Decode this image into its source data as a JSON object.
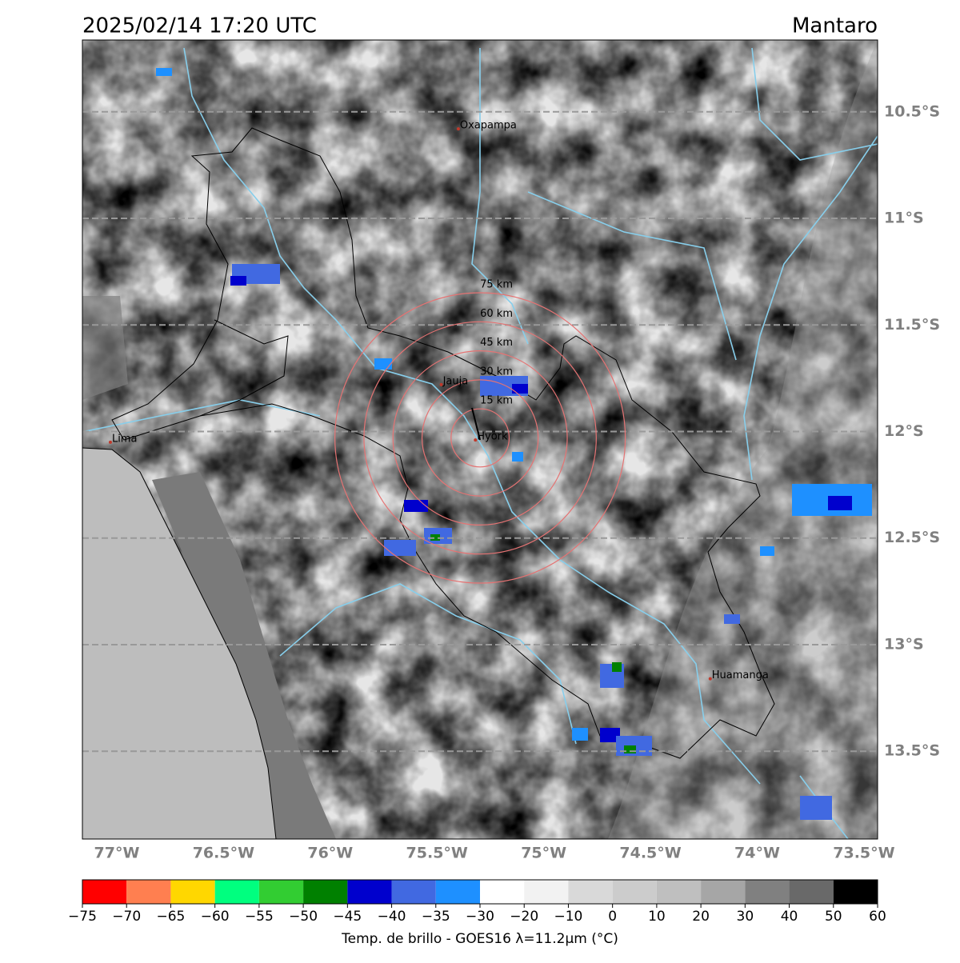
{
  "map": {
    "title": "2025/02/14 17:20 UTC",
    "region": "Mantaro",
    "lonlim": [
      -77.161,
      -73.436
    ],
    "latlim": [
      -10.163,
      -13.912
    ],
    "lat_ticks": [
      {
        "value": -10.5,
        "label": "10.5°S"
      },
      {
        "value": -11,
        "label": "11°S"
      },
      {
        "value": -11.5,
        "label": "11.5°S"
      },
      {
        "value": -12,
        "label": "12°S"
      },
      {
        "value": -12.5,
        "label": "12.5°S"
      },
      {
        "value": -13,
        "label": "13°S"
      },
      {
        "value": -13.5,
        "label": "13.5°S"
      }
    ],
    "lon_ticks": [
      {
        "value": -77,
        "label": "77°W"
      },
      {
        "value": -76.5,
        "label": "76.5°W"
      },
      {
        "value": -76,
        "label": "76°W"
      },
      {
        "value": -75.5,
        "label": "75.5°W"
      },
      {
        "value": -75,
        "label": "75°W"
      },
      {
        "value": -74.5,
        "label": "74.5°W"
      },
      {
        "value": -74,
        "label": "74°W"
      },
      {
        "value": -73.5,
        "label": "73.5°W"
      }
    ],
    "cities": [
      {
        "name": "Oxapampa",
        "lon": -75.4,
        "lat": -10.58
      },
      {
        "name": "Jauja",
        "lon": -75.48,
        "lat": -11.78
      },
      {
        "name": "Hyork",
        "lon": -75.32,
        "lat": -12.04
      },
      {
        "name": "Lima",
        "lon": -77.03,
        "lat": -12.05
      },
      {
        "name": "Huamanga",
        "lon": -74.22,
        "lat": -13.16
      }
    ],
    "center": {
      "lon": -75.298,
      "lat": -12.03
    },
    "rings": [
      {
        "value": 15,
        "label": "15 km"
      },
      {
        "value": 30,
        "label": "30 km"
      },
      {
        "value": 45,
        "label": "45 km"
      },
      {
        "value": 60,
        "label": "60 km"
      },
      {
        "value": 75,
        "label": "75 km"
      }
    ],
    "colorbar": {
      "label": "Temp. de brillo - GOES16 λ=11.2μm (°C)",
      "ticks": [
        {
          "value": -75,
          "label": "−75"
        },
        {
          "value": -70,
          "label": "−70"
        },
        {
          "value": -65,
          "label": "−65"
        },
        {
          "value": -60,
          "label": "−60"
        },
        {
          "value": -55,
          "label": "−55"
        },
        {
          "value": -50,
          "label": "−50"
        },
        {
          "value": -45,
          "label": "−45"
        },
        {
          "value": -40,
          "label": "−40"
        },
        {
          "value": -35,
          "label": "−35"
        },
        {
          "value": -30,
          "label": "−30"
        },
        {
          "value": -20,
          "label": "−20"
        },
        {
          "value": -10,
          "label": "−10"
        },
        0,
        10,
        20,
        30,
        40,
        50,
        60
      ],
      "colors": [
        "#ff0000",
        "#ff7f50",
        "#ffd700",
        "#00ff7f",
        "#32cd32",
        "#008000",
        "#0000cd",
        "#4169e1",
        "#1e90ff",
        "#ffffff",
        "#f2f2f2",
        "#d9d9d9",
        "#cccccc",
        "#bfbfbf",
        "#a6a6a6",
        "#808080",
        "#696969",
        "#000000"
      ]
    }
  }
}
